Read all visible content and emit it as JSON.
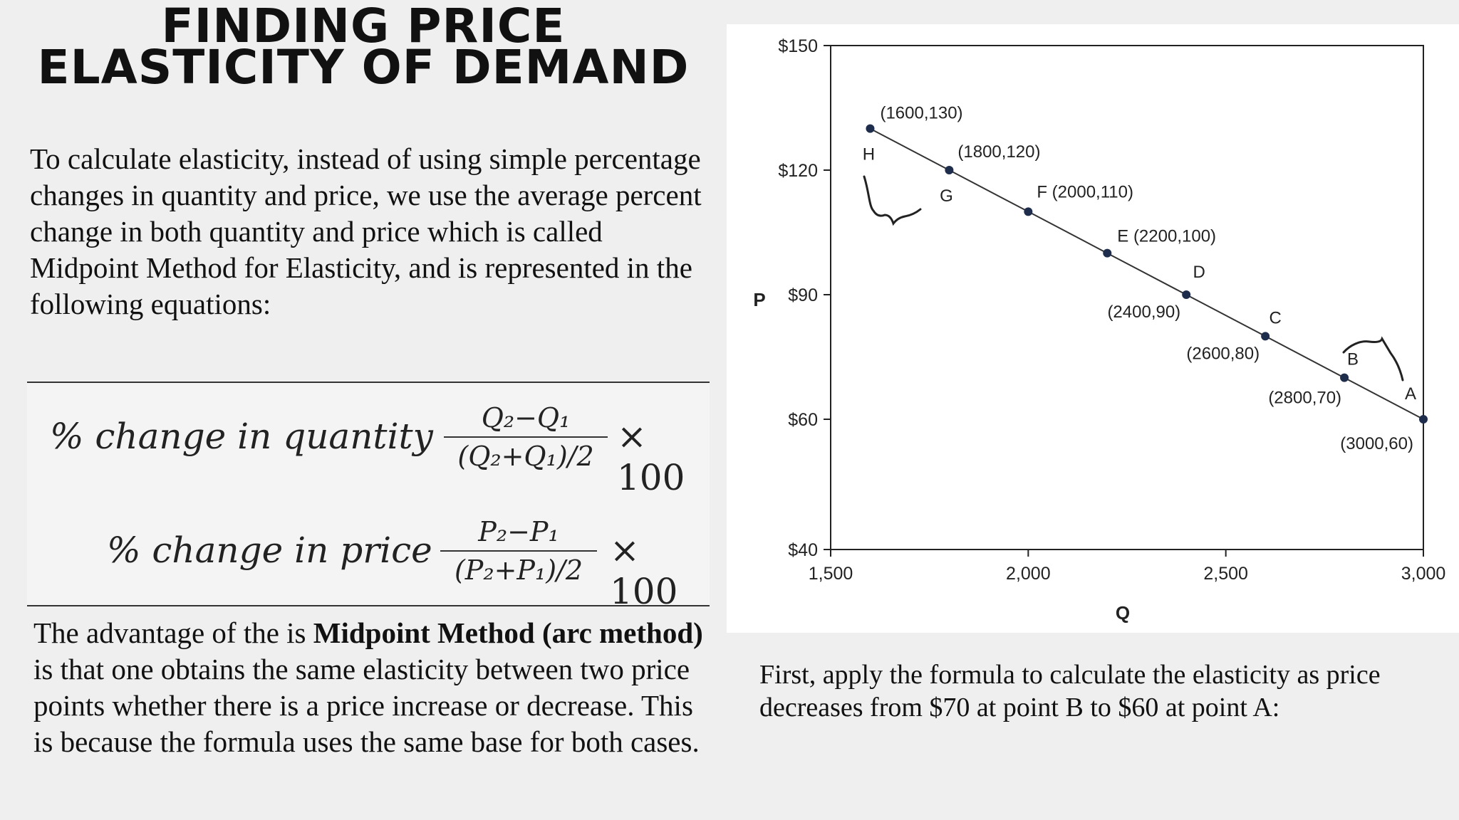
{
  "title": {
    "line1": "FINDING PRICE",
    "line2": "ELASTICITY OF DEMAND"
  },
  "intro_text": "To calculate elasticity, instead of using simple percentage changes in quantity and price, we use the average percent change in both quantity and price which is called Midpoint Method for Elasticity, and is represented in the following equations:",
  "formulas": {
    "quantity": {
      "label": "% change in quantity",
      "numerator": "Q₂−Q₁",
      "denominator": "(Q₂+Q₁)/2",
      "multiplier": "× 100"
    },
    "price": {
      "label": "% change in price",
      "numerator": "P₂−P₁",
      "denominator": "(P₂+P₁)/2",
      "multiplier": "× 100"
    }
  },
  "advantage": {
    "prefix": "The advantage of the is ",
    "bold": "Midpoint Method (arc method)",
    "suffix": " is that one obtains the same elasticity between two price points whether there is a price increase or decrease. This is because the formula uses the same base for both cases."
  },
  "caption": "First, apply the formula to calculate the elasticity as price decreases from $70 at point B to $60 at point A:",
  "chart_data": {
    "type": "line",
    "xlabel": "Q",
    "ylabel": "P",
    "xlim": [
      1500,
      3000
    ],
    "ylim": [
      40,
      150
    ],
    "x_ticks": [
      {
        "value": 1500,
        "label": "1,500"
      },
      {
        "value": 2000,
        "label": "2,000"
      },
      {
        "value": 2500,
        "label": "2,500"
      },
      {
        "value": 3000,
        "label": "3,000"
      }
    ],
    "y_ticks": [
      {
        "value": 150,
        "label": "$150"
      },
      {
        "value": 120,
        "label": "$120"
      },
      {
        "value": 90,
        "label": "$90"
      },
      {
        "value": 60,
        "label": "$60"
      },
      {
        "value": 40,
        "label": "$40"
      }
    ],
    "grid": false,
    "points": [
      {
        "x": 1600,
        "y": 130,
        "letter": "H",
        "coord": "(1600,130)"
      },
      {
        "x": 1800,
        "y": 120,
        "letter": "G",
        "coord": "(1800,120)"
      },
      {
        "x": 2000,
        "y": 110,
        "letter": "F",
        "coord": "(2000,110)"
      },
      {
        "x": 2200,
        "y": 100,
        "letter": "E",
        "coord": "(2200,100)"
      },
      {
        "x": 2400,
        "y": 90,
        "letter": "D",
        "coord": "(2400,90)"
      },
      {
        "x": 2600,
        "y": 80,
        "letter": "C",
        "coord": "(2600,80)"
      },
      {
        "x": 2800,
        "y": 70,
        "letter": "B",
        "coord": "(2800,70)"
      },
      {
        "x": 3000,
        "y": 60,
        "letter": "A",
        "coord": "(3000,60)"
      }
    ],
    "line_color": "#333333",
    "point_color": "#1f2d4d"
  }
}
